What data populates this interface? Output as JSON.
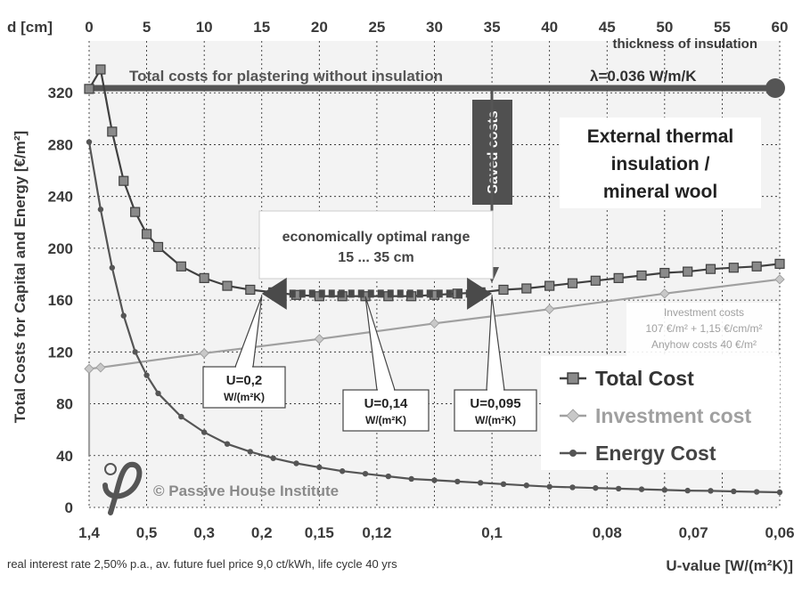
{
  "chart_data": {
    "type": "line",
    "title": "",
    "top_axis": {
      "label": "d [cm]",
      "ticks": [
        "0",
        "5",
        "10",
        "15",
        "20",
        "25",
        "30",
        "35",
        "40",
        "45",
        "50",
        "55",
        "60"
      ],
      "subtitle": "thickness of insulation",
      "range": [
        0,
        60
      ]
    },
    "bottom_axis": {
      "label": "U-value   [W/(m²K)]",
      "ticks": [
        "1,4",
        "0,5",
        "0,3",
        "0,2",
        "0,15",
        "0,12",
        "0,1",
        "0,08",
        "0,07",
        "0,06"
      ]
    },
    "y_axis": {
      "label": "Total Costs for Capital and Energy  [€/m²]",
      "ticks": [
        "0",
        "40",
        "80",
        "120",
        "160",
        "200",
        "240",
        "280",
        "320"
      ],
      "range": [
        0,
        360
      ]
    },
    "grid": true,
    "legend_position": "bottom-right",
    "series": [
      {
        "name": "Total Cost",
        "color": "#404040",
        "marker": "square",
        "x_cm": [
          0,
          1,
          2,
          3,
          4,
          5,
          6,
          8,
          10,
          12,
          14,
          16,
          18,
          20,
          22,
          24,
          26,
          28,
          30,
          32,
          34,
          36,
          38,
          40,
          42,
          44,
          46,
          48,
          50,
          52,
          54,
          56,
          58,
          60
        ],
        "y": [
          323,
          338,
          290,
          252,
          228,
          211,
          201,
          186,
          177,
          171,
          168,
          166,
          164,
          163,
          163,
          163,
          163,
          163,
          164,
          165,
          166,
          168,
          169,
          171,
          173,
          175,
          177,
          179,
          181,
          182,
          184,
          185,
          186,
          188
        ]
      },
      {
        "name": "Investment cost",
        "color": "#a0a0a0",
        "marker": "diamond",
        "x_cm": [
          0,
          0,
          1,
          10,
          20,
          30,
          40,
          50,
          60
        ],
        "y": [
          40,
          107,
          108,
          119,
          130,
          142,
          153,
          165,
          176
        ]
      },
      {
        "name": "Energy Cost",
        "color": "#555555",
        "marker": "dot",
        "x_cm": [
          0,
          1,
          2,
          3,
          4,
          5,
          6,
          8,
          10,
          12,
          14,
          16,
          18,
          20,
          22,
          24,
          26,
          28,
          30,
          32,
          34,
          36,
          38,
          40,
          42,
          44,
          46,
          48,
          50,
          52,
          54,
          56,
          58,
          60
        ],
        "y": [
          282,
          230,
          185,
          148,
          120,
          102,
          88,
          70,
          58,
          49,
          43,
          38,
          34,
          31,
          28,
          26,
          24,
          22,
          21,
          20,
          19,
          18,
          17,
          16,
          15.5,
          15,
          14.5,
          14,
          13.5,
          13,
          12.8,
          12.4,
          12,
          11.7
        ]
      }
    ],
    "reference_line": {
      "label": "Total costs for plastering without insulation",
      "y": 323
    },
    "annotations": {
      "lambda": "λ=0.036 W/m/K",
      "saved_costs": "Saved costs",
      "material_line1": "External thermal",
      "material_line2": "insulation /",
      "material_line3": "mineral wool",
      "optimal_line1": "economically optimal range",
      "optimal_line2": "15 ... 35 cm",
      "optimal_range_cm": [
        15,
        35
      ],
      "u_callouts": [
        {
          "value": "U=0,2",
          "unit": "W/(m²K)",
          "x_cm": 15
        },
        {
          "value": "U=0,14",
          "unit": "W/(m²K)",
          "x_cm": 24
        },
        {
          "value": "U=0,095",
          "unit": "W/(m²K)",
          "x_cm": 35
        }
      ],
      "investment_line1": "Investment costs",
      "investment_line2": "107 €/m² + 1,15 €/cm/m²",
      "investment_line3": "Anyhow costs 40 €/m²",
      "copyright": "© Passive House Institute",
      "footnote": "real interest rate 2,50% p.a., av. future fuel price 9,0 ct/kWh, life cycle 40 yrs"
    }
  }
}
